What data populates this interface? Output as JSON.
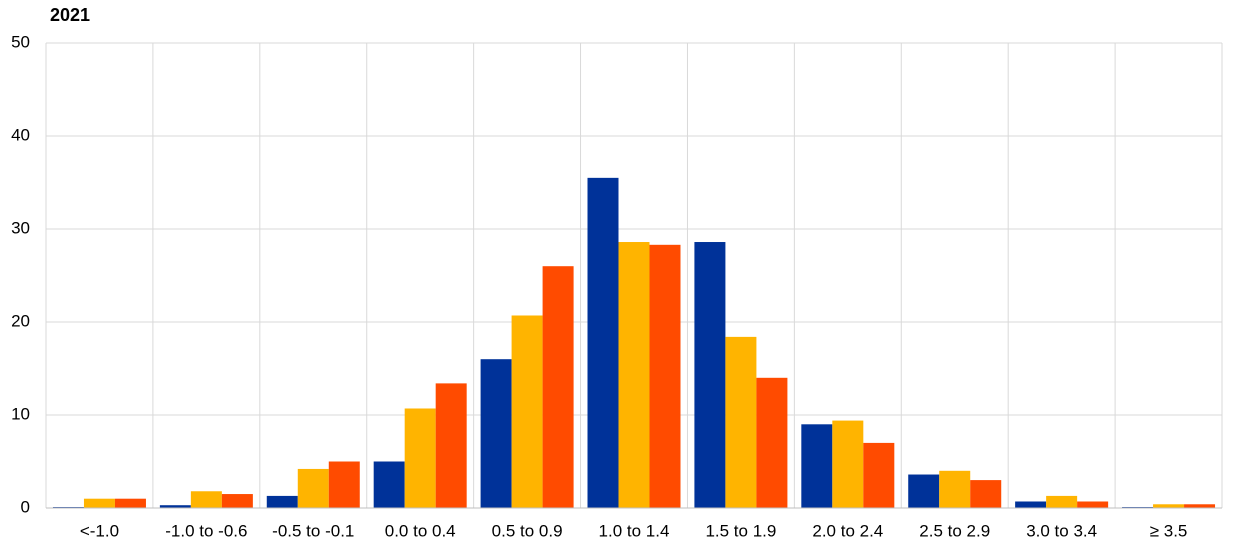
{
  "chart_data": {
    "type": "bar",
    "title": "2021",
    "categories": [
      "<-1.0",
      "-1.0 to -0.6",
      "-0.5 to -0.1",
      "0.0 to 0.4",
      "0.5 to 0.9",
      "1.0 to 1.4",
      "1.5 to 1.9",
      "2.0 to 2.4",
      "2.5 to 2.9",
      "3.0 to 3.4",
      "≥ 3.5"
    ],
    "series": [
      {
        "color": "#003299",
        "values": [
          0.1,
          0.3,
          1.3,
          5.0,
          16.0,
          35.5,
          28.6,
          9.0,
          3.6,
          0.7,
          0.1
        ]
      },
      {
        "color": "#ffb400",
        "values": [
          1.0,
          1.8,
          4.2,
          10.7,
          20.7,
          28.6,
          18.4,
          9.4,
          4.0,
          1.3,
          0.4
        ]
      },
      {
        "color": "#ff4b00",
        "values": [
          1.0,
          1.5,
          5.0,
          13.4,
          26.0,
          28.3,
          14.0,
          7.0,
          3.0,
          0.7,
          0.4
        ]
      }
    ],
    "ylim": [
      0,
      50
    ],
    "yticks": [
      0,
      10,
      20,
      30,
      40,
      50
    ],
    "grid": true
  }
}
